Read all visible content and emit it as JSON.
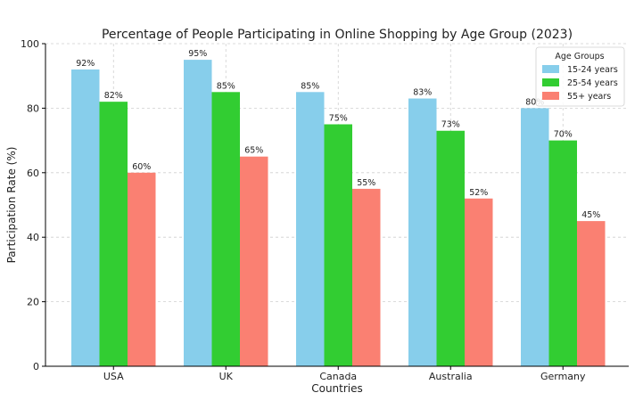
{
  "chart_data": {
    "type": "bar",
    "title": "Percentage of People Participating in Online Shopping by Age Group (2023)",
    "xlabel": "Countries",
    "ylabel": "Participation Rate (%)",
    "categories": [
      "USA",
      "UK",
      "Canada",
      "Australia",
      "Germany"
    ],
    "series": [
      {
        "name": "15-24 years",
        "values": [
          92,
          95,
          85,
          83,
          80
        ],
        "color": "#87ceeb"
      },
      {
        "name": "25-54 years",
        "values": [
          82,
          85,
          75,
          73,
          70
        ],
        "color": "#32cd32"
      },
      {
        "name": "55+ years",
        "values": [
          60,
          65,
          55,
          52,
          45
        ],
        "color": "#fa8072"
      }
    ],
    "ylim": [
      0,
      100
    ],
    "yticks": [
      0,
      20,
      40,
      60,
      80,
      100
    ],
    "grid": true,
    "legend": {
      "title": "Age Groups",
      "position": "top-right"
    },
    "value_suffix": "%"
  }
}
